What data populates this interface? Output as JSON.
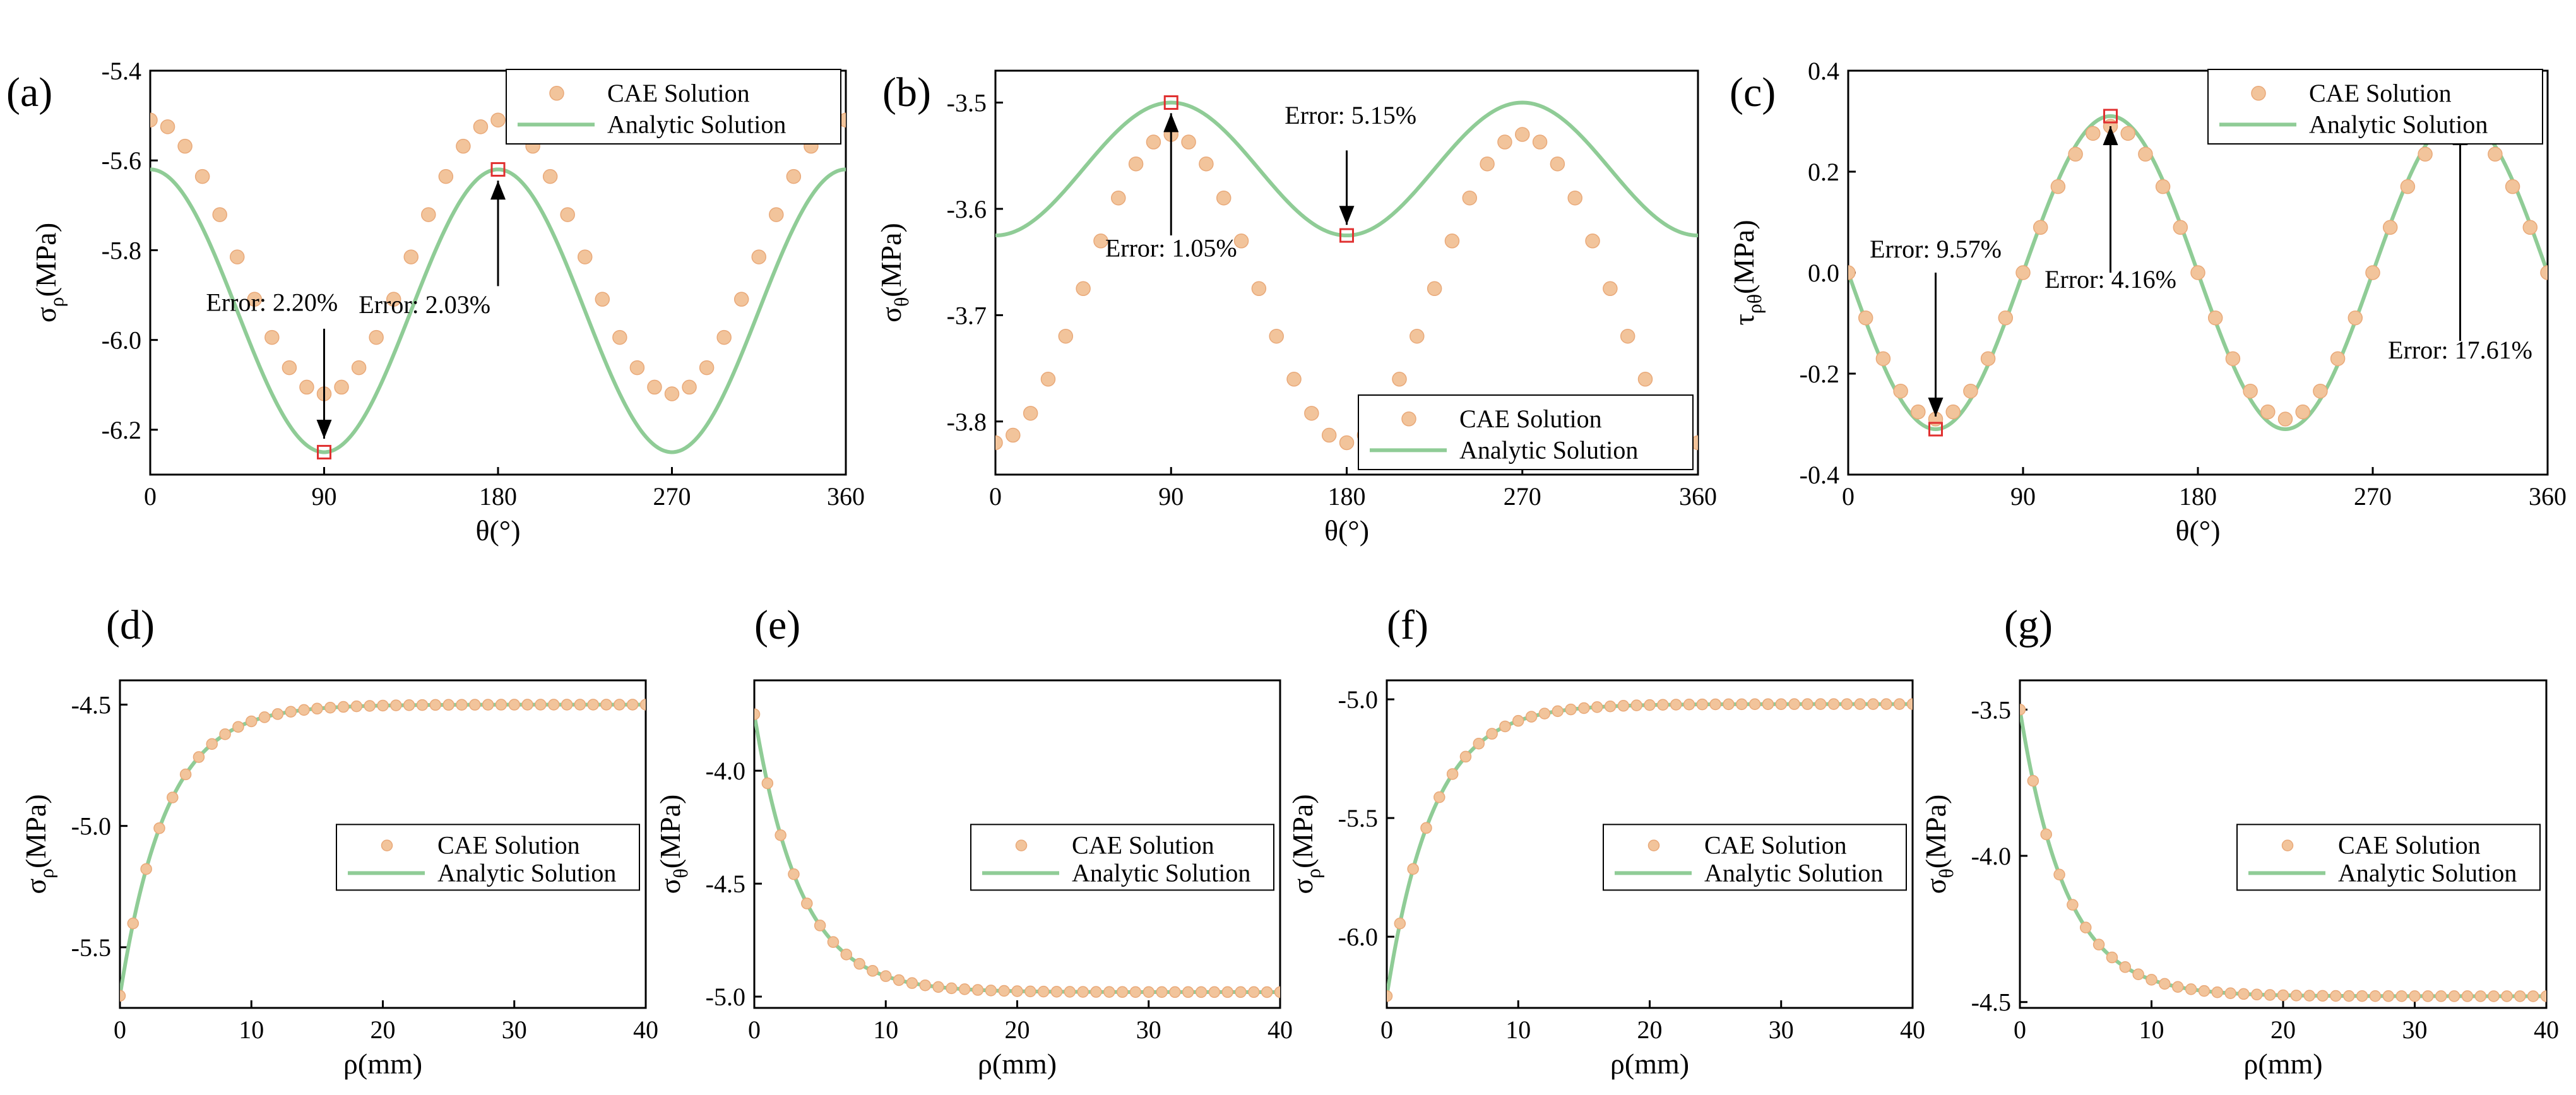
{
  "colors": {
    "cae_marker": "#f2c49b",
    "cae_marker_edge": "#e9a979",
    "analytic_line": "#8fcc96",
    "error_marker": "#e03030",
    "axis": "#000000"
  },
  "chart_data": [
    {
      "id": "a",
      "panel_label": "(a)",
      "type": "scatter+line",
      "xlabel": "θ(°)",
      "ylabel_main": "σ",
      "ylabel_sub": "ρ",
      "ylabel_unit": "(MPa)",
      "xlim": [
        0,
        360
      ],
      "ylim": [
        -6.3,
        -5.4
      ],
      "xticks": [
        0,
        90,
        180,
        270,
        360
      ],
      "xtick_labels": [
        "0",
        "90",
        "180",
        "270",
        "360"
      ],
      "yticks": [
        -6.2,
        -6.0,
        -5.8,
        -5.6,
        -5.4
      ],
      "ytick_labels": [
        "-6.2",
        "-6.0",
        "-5.8",
        "-5.6",
        "-5.4"
      ],
      "legend": {
        "position": "top-right",
        "entries": [
          "CAE Solution",
          "Analytic Solution"
        ]
      },
      "series": [
        {
          "name": "CAE Solution",
          "kind": "scatter",
          "model": "cos2",
          "center": -5.815,
          "amp": 0.305,
          "phase": 0,
          "step": 9
        },
        {
          "name": "Analytic Solution",
          "kind": "line",
          "model": "cos2",
          "center": -5.935,
          "amp": 0.315,
          "phase": 0
        }
      ],
      "error_markers": [
        {
          "x": 90,
          "y": -6.25
        },
        {
          "x": 180,
          "y": -5.62
        }
      ],
      "annotations": [
        {
          "text": "Error: 2.20%",
          "x": 90,
          "y": -6.25,
          "text_x": 63,
          "text_y": -5.935,
          "arrow_from_y": -5.975,
          "arrow_to_y": -6.22
        },
        {
          "text": "Error: 2.03%",
          "x": 180,
          "y": -5.62,
          "text_x": 142,
          "text_y": -5.94,
          "arrow_from_y": -5.88,
          "arrow_to_y": -5.645
        }
      ]
    },
    {
      "id": "b",
      "panel_label": "(b)",
      "type": "scatter+line",
      "xlabel": "θ(°)",
      "ylabel_main": "σ",
      "ylabel_sub": "θ",
      "ylabel_unit": "(MPa)",
      "xlim": [
        0,
        360
      ],
      "ylim": [
        -3.85,
        -3.47
      ],
      "xticks": [
        0,
        90,
        180,
        270,
        360
      ],
      "xtick_labels": [
        "0",
        "90",
        "180",
        "270",
        "360"
      ],
      "yticks": [
        -3.8,
        -3.7,
        -3.6,
        -3.5
      ],
      "ytick_labels": [
        "-3.8",
        "-3.7",
        "-3.6",
        "-3.5"
      ],
      "legend": {
        "position": "bottom-right",
        "entries": [
          "CAE Solution",
          "Analytic Solution"
        ]
      },
      "series": [
        {
          "name": "CAE Solution",
          "kind": "scatter",
          "model": "cos2",
          "center": -3.675,
          "amp": 0.145,
          "phase": 180,
          "step": 9
        },
        {
          "name": "Analytic Solution",
          "kind": "line",
          "model": "cos2",
          "center": -3.5625,
          "amp": 0.0625,
          "phase": 180
        }
      ],
      "error_markers": [
        {
          "x": 90,
          "y": -3.5
        },
        {
          "x": 180,
          "y": -3.625
        }
      ],
      "annotations": [
        {
          "text": "Error: 1.05%",
          "x": 90,
          "y": -3.5,
          "text_x": 90,
          "text_y": -3.645,
          "arrow_from_y": -3.625,
          "arrow_to_y": -3.51
        },
        {
          "text": "Error: 5.15%",
          "x": 180,
          "y": -3.625,
          "text_x": 182,
          "text_y": -3.52,
          "arrow_from_y": -3.545,
          "arrow_to_y": -3.615
        }
      ]
    },
    {
      "id": "c",
      "panel_label": "(c)",
      "type": "scatter+line",
      "xlabel": "θ(°)",
      "ylabel_main": "τ",
      "ylabel_sub": "ρθ",
      "ylabel_unit": "(MPa)",
      "xlim": [
        0,
        360
      ],
      "ylim": [
        -0.4,
        0.4
      ],
      "xticks": [
        0,
        90,
        180,
        270,
        360
      ],
      "xtick_labels": [
        "0",
        "90",
        "180",
        "270",
        "360"
      ],
      "yticks": [
        -0.4,
        -0.2,
        0.0,
        0.2,
        0.4
      ],
      "ytick_labels": [
        "-0.4",
        "-0.2",
        "0.0",
        "0.2",
        "0.4"
      ],
      "legend": {
        "position": "top-right",
        "entries": [
          "CAE Solution",
          "Analytic Solution"
        ]
      },
      "series": [
        {
          "name": "CAE Solution",
          "kind": "scatter",
          "model": "sin2neg",
          "center": 0,
          "amp": 0.29,
          "phase": 0,
          "step": 9
        },
        {
          "name": "Analytic Solution",
          "kind": "line",
          "model": "sin2neg",
          "center": 0,
          "amp": 0.31,
          "phase": 0
        }
      ],
      "error_markers": [
        {
          "x": 45,
          "y": -0.31
        },
        {
          "x": 135,
          "y": 0.31
        },
        {
          "x": 315,
          "y": 0.31
        }
      ],
      "annotations": [
        {
          "text": "Error: 9.57%",
          "x": 45,
          "y": -0.31,
          "text_x": 45,
          "text_y": 0.03,
          "arrow_from_y": 0.0,
          "arrow_to_y": -0.285
        },
        {
          "text": "Error: 4.16%",
          "x": 135,
          "y": 0.31,
          "text_x": 135,
          "text_y": -0.03,
          "arrow_from_y": 0.0,
          "arrow_to_y": 0.29
        },
        {
          "text": "Error: 17.61%",
          "x": 315,
          "y": 0.31,
          "text_x": 315,
          "text_y": -0.17,
          "arrow_from_y": -0.135,
          "arrow_to_y": 0.29
        }
      ]
    },
    {
      "id": "d",
      "panel_label": "(d)",
      "type": "scatter+line",
      "xlabel": "ρ(mm)",
      "ylabel_main": "σ",
      "ylabel_sub": "ρ",
      "ylabel_unit": "(MPa)",
      "xlim": [
        0,
        40
      ],
      "ylim": [
        -5.75,
        -4.4
      ],
      "xticks": [
        0,
        10,
        20,
        30,
        40
      ],
      "xtick_labels": [
        "0",
        "10",
        "20",
        "30",
        "40"
      ],
      "yticks": [
        -5.5,
        -5.0,
        -4.5
      ],
      "ytick_labels": [
        "-5.5",
        "-5.0",
        "-4.5"
      ],
      "legend": {
        "position": "center-right",
        "entries": [
          "CAE Solution",
          "Analytic Solution"
        ]
      },
      "series": [
        {
          "name": "CAE Solution",
          "kind": "scatter",
          "model": "decay",
          "asym": -4.5,
          "delta": -1.2,
          "tau": 3.5,
          "step": 1
        },
        {
          "name": "Analytic Solution",
          "kind": "line",
          "model": "decay",
          "asym": -4.5,
          "delta": -1.2,
          "tau": 3.5
        }
      ]
    },
    {
      "id": "e",
      "panel_label": "(e)",
      "type": "scatter+line",
      "xlabel": "ρ(mm)",
      "ylabel_main": "σ",
      "ylabel_sub": "θ",
      "ylabel_unit": "(MPa)",
      "xlim": [
        0,
        40
      ],
      "ylim": [
        -5.05,
        -3.6
      ],
      "xticks": [
        0,
        10,
        20,
        30,
        40
      ],
      "xtick_labels": [
        "0",
        "10",
        "20",
        "30",
        "40"
      ],
      "yticks": [
        -5.0,
        -4.5,
        -4.0
      ],
      "ytick_labels": [
        "-5.0",
        "-4.5",
        "-4.0"
      ],
      "legend": {
        "position": "center-right",
        "entries": [
          "CAE Solution",
          "Analytic Solution"
        ]
      },
      "series": [
        {
          "name": "CAE Solution",
          "kind": "scatter",
          "model": "decay",
          "asym": -4.98,
          "delta": 1.23,
          "tau": 3.5,
          "step": 1
        },
        {
          "name": "Analytic Solution",
          "kind": "line",
          "model": "decay",
          "asym": -4.98,
          "delta": 1.23,
          "tau": 3.5
        }
      ]
    },
    {
      "id": "f",
      "panel_label": "(f)",
      "type": "scatter+line",
      "xlabel": "ρ(mm)",
      "ylabel_main": "σ",
      "ylabel_sub": "ρ",
      "ylabel_unit": "(MPa)",
      "xlim": [
        0,
        40
      ],
      "ylim": [
        -6.3,
        -4.92
      ],
      "xticks": [
        0,
        10,
        20,
        30,
        40
      ],
      "xtick_labels": [
        "0",
        "10",
        "20",
        "30",
        "40"
      ],
      "yticks": [
        -6.0,
        -5.5,
        -5.0
      ],
      "ytick_labels": [
        "-6.0",
        "-5.5",
        "-5.0"
      ],
      "legend": {
        "position": "center-right",
        "entries": [
          "CAE Solution",
          "Analytic Solution"
        ]
      },
      "series": [
        {
          "name": "CAE Solution",
          "kind": "scatter",
          "model": "decay",
          "asym": -5.02,
          "delta": -1.23,
          "tau": 3.5,
          "step": 1
        },
        {
          "name": "Analytic Solution",
          "kind": "line",
          "model": "decay",
          "asym": -5.02,
          "delta": -1.23,
          "tau": 3.5
        }
      ]
    },
    {
      "id": "g",
      "panel_label": "(g)",
      "type": "scatter+line",
      "xlabel": "ρ(mm)",
      "ylabel_main": "σ",
      "ylabel_sub": "θ",
      "ylabel_unit": "(MPa)",
      "xlim": [
        0,
        40
      ],
      "ylim": [
        -4.52,
        -3.4
      ],
      "xticks": [
        0,
        10,
        20,
        30,
        40
      ],
      "xtick_labels": [
        "0",
        "10",
        "20",
        "30",
        "40"
      ],
      "yticks": [
        -4.5,
        -4.0,
        -3.5
      ],
      "ytick_labels": [
        "-4.5",
        "-4.0",
        "-3.5"
      ],
      "legend": {
        "position": "center-right",
        "entries": [
          "CAE Solution",
          "Analytic Solution"
        ]
      },
      "series": [
        {
          "name": "CAE Solution",
          "kind": "scatter",
          "model": "decay",
          "asym": -4.48,
          "delta": 0.98,
          "tau": 3.5,
          "step": 1
        },
        {
          "name": "Analytic Solution",
          "kind": "line",
          "model": "decay",
          "asym": -4.48,
          "delta": 0.98,
          "tau": 3.5
        }
      ]
    }
  ]
}
